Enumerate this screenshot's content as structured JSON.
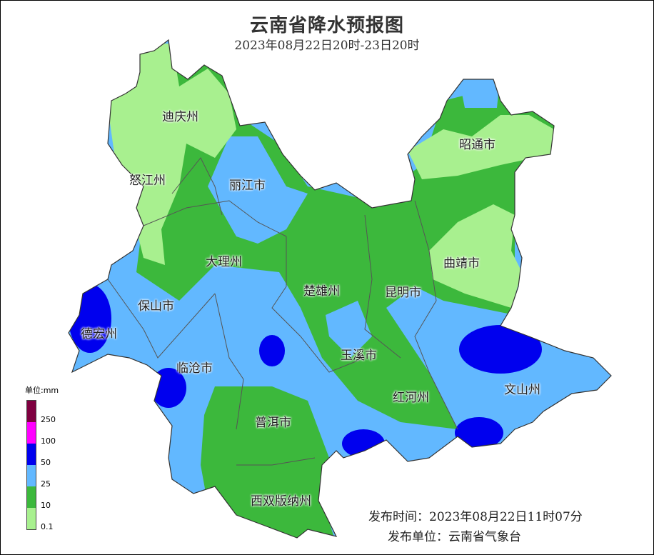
{
  "title": "云南省降水预报图",
  "subtitle": "2023年08月22日20时-23日20时",
  "colors": {
    "light_green": "#a8f08f",
    "green": "#3cb83c",
    "light_blue": "#62b8ff",
    "blue": "#0000ee",
    "magenta": "#ff00ff",
    "dark_red": "#7f0040"
  },
  "legend": {
    "title": "单位:mm",
    "bins": [
      {
        "color": "#7f0040"
      },
      {
        "color": "#ff00ff"
      },
      {
        "color": "#0000ee"
      },
      {
        "color": "#62b8ff"
      },
      {
        "color": "#3cb83c"
      },
      {
        "color": "#a8f08f"
      }
    ],
    "ticks": [
      "250",
      "100",
      "50",
      "25",
      "10",
      "0.1"
    ]
  },
  "region_labels": [
    "迪庆州",
    "怒江州",
    "丽江市",
    "昭通市",
    "曲靖市",
    "大理州",
    "楚雄州",
    "昆明市",
    "保山市",
    "德宏州",
    "玉溪市",
    "临沧市",
    "红河州",
    "文山州",
    "普洱市",
    "西双版纳州"
  ],
  "footer": {
    "issue_time": "发布时间：2023年08月22日11时07分",
    "issuer": "发布单位：云南省气象台"
  }
}
